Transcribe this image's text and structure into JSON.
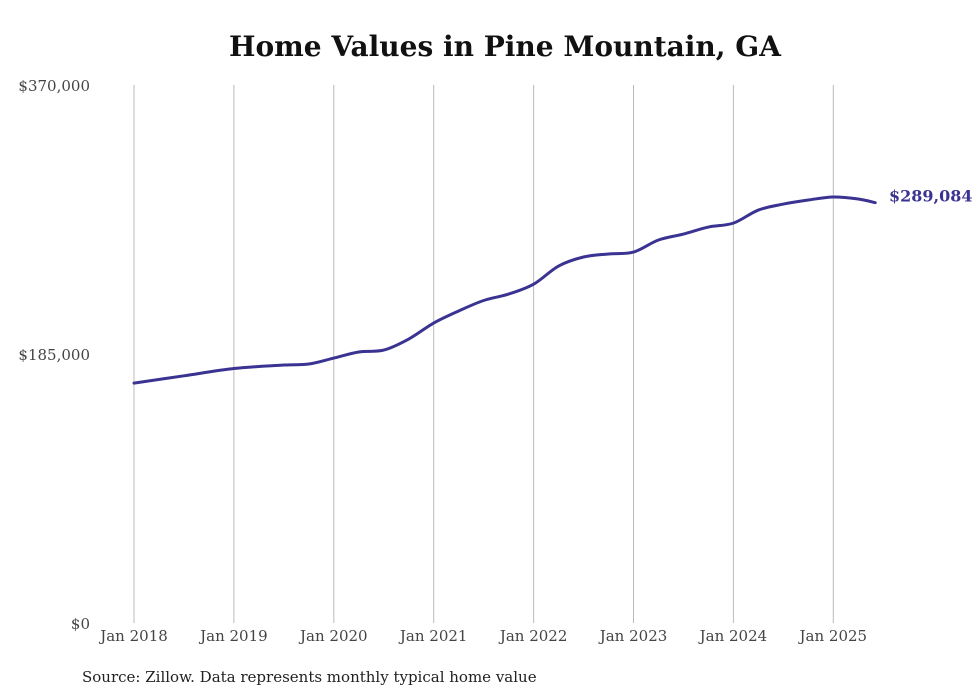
{
  "chart_data": {
    "type": "line",
    "title": "Home Values in Pine Mountain, GA",
    "xlabel": "",
    "ylabel": "",
    "ylim": [
      0,
      370000
    ],
    "yticks": [
      {
        "value": 0,
        "label": "$0"
      },
      {
        "value": 185000,
        "label": "$185,000"
      },
      {
        "value": 370000,
        "label": "$370,000"
      }
    ],
    "xticks": [
      {
        "value": 2018,
        "label": "Jan 2018"
      },
      {
        "value": 2019,
        "label": "Jan 2019"
      },
      {
        "value": 2020,
        "label": "Jan 2020"
      },
      {
        "value": 2021,
        "label": "Jan 2021"
      },
      {
        "value": 2022,
        "label": "Jan 2022"
      },
      {
        "value": 2023,
        "label": "Jan 2023"
      },
      {
        "value": 2024,
        "label": "Jan 2024"
      },
      {
        "value": 2025,
        "label": "Jan 2025"
      }
    ],
    "grid": "vertical",
    "series": [
      {
        "name": "Typical home value",
        "color": "#3a3391",
        "x": [
          2018.0,
          2018.5,
          2019.0,
          2019.5,
          2019.75,
          2020.0,
          2020.25,
          2020.5,
          2020.75,
          2021.0,
          2021.25,
          2021.5,
          2021.75,
          2022.0,
          2022.25,
          2022.5,
          2022.75,
          2023.0,
          2023.25,
          2023.5,
          2023.75,
          2024.0,
          2024.25,
          2024.5,
          2024.75,
          2025.0,
          2025.25,
          2025.42
        ],
        "values": [
          165000,
          170000,
          175000,
          177400,
          178100,
          182200,
          186400,
          187700,
          195300,
          206300,
          214600,
          221800,
          226200,
          233000,
          245500,
          251700,
          253800,
          255100,
          263400,
          267500,
          272300,
          275000,
          284000,
          288100,
          290900,
          293000,
          291600,
          289084
        ]
      }
    ],
    "end_label": "$289,084"
  },
  "source": "Source: Zillow. Data represents monthly typical home value"
}
